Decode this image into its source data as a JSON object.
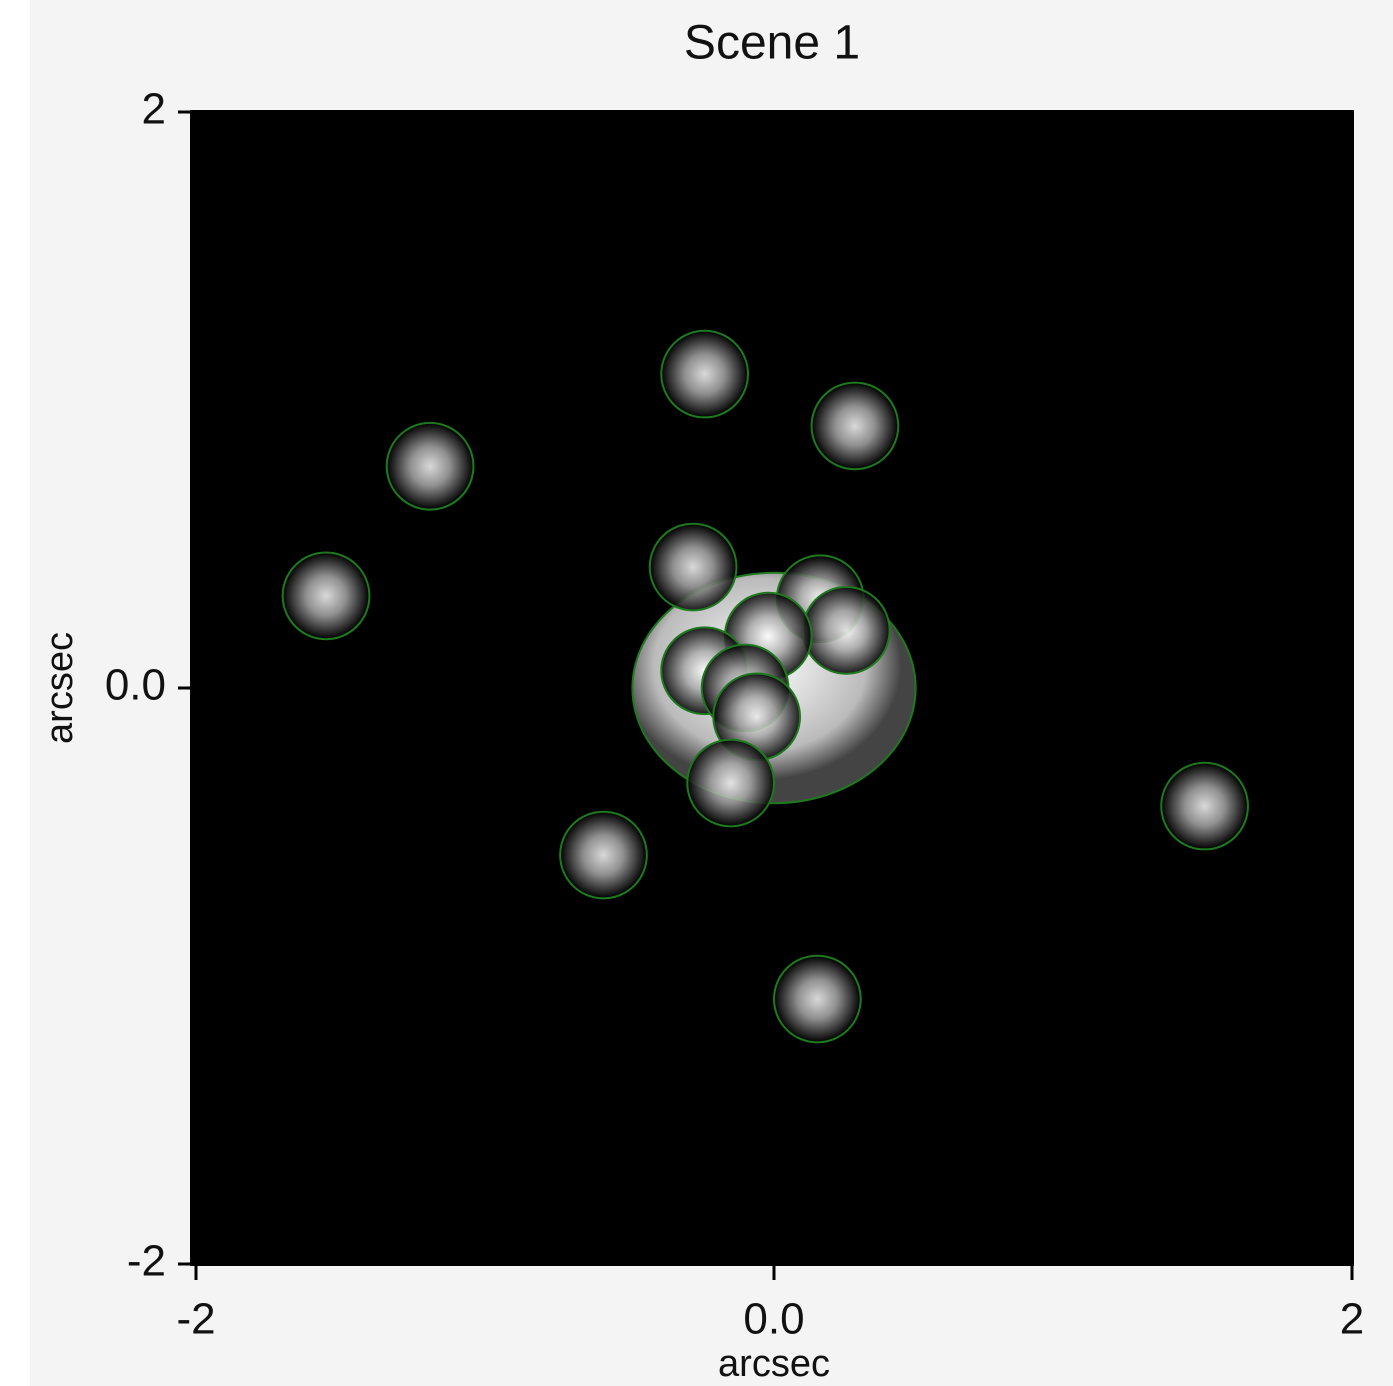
{
  "chart_data": {
    "type": "scatter",
    "title": "Scene 1",
    "xlabel": "arcsec",
    "ylabel": "arcsec",
    "xlim": [
      -2,
      2
    ],
    "ylim": [
      -2,
      2
    ],
    "xticks": [
      -2,
      {
        "value": 0,
        "label": "0.0"
      },
      2
    ],
    "yticks": [
      -2,
      {
        "value": 0,
        "label": "0.0"
      },
      2
    ],
    "color": "#1e7a1e",
    "x": [
      -0.24,
      0.28,
      -1.19,
      -1.55,
      -0.28,
      1.49,
      -0.59,
      0.15,
      0.16,
      0.25,
      -0.02,
      -0.24,
      -0.1,
      -0.06,
      -0.15
    ],
    "y": [
      1.09,
      0.91,
      0.77,
      0.32,
      0.42,
      -0.41,
      -0.58,
      -1.08,
      0.31,
      0.2,
      0.18,
      0.06,
      0,
      -0.1,
      -0.33
    ],
    "sizes": [
      0.15,
      0.15,
      0.15,
      0.15,
      0.15,
      0.15,
      0.15,
      0.15,
      0.15,
      0.15,
      0.15,
      0.15,
      0.15,
      0.15,
      0.15
    ],
    "ellipse": {
      "x": 0,
      "y": 0,
      "width": 0.98,
      "height": 0.8
    }
  }
}
